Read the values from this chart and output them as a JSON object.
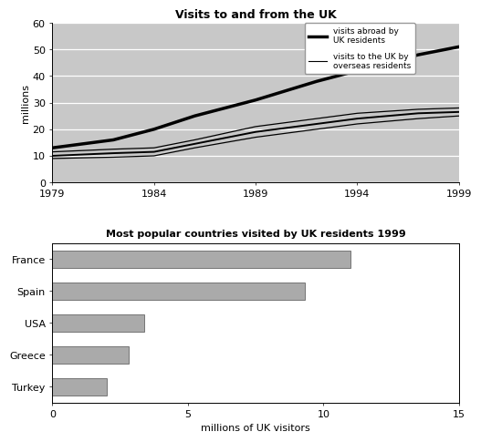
{
  "line_title": "Visits to and from the UK",
  "line_years": [
    1979,
    1982,
    1984,
    1986,
    1989,
    1992,
    1994,
    1997,
    1999
  ],
  "visits_abroad": [
    13,
    16,
    20,
    25,
    31,
    38,
    42,
    48,
    51
  ],
  "visits_to_uk_upper": [
    11.5,
    12.5,
    13,
    16,
    21,
    24,
    26,
    27.5,
    28
  ],
  "visits_to_uk_mid": [
    10,
    11,
    11.5,
    14.5,
    19,
    22,
    24,
    26,
    26.5
  ],
  "visits_to_uk_lower": [
    9,
    9.5,
    10,
    13,
    17,
    20,
    22,
    24,
    25
  ],
  "line_ylim": [
    0,
    60
  ],
  "line_yticks": [
    0,
    10,
    20,
    30,
    40,
    50,
    60
  ],
  "line_xticks": [
    1979,
    1984,
    1989,
    1994,
    1999
  ],
  "line_ylabel": "millions",
  "legend_abroad": "visits abroad by\nUK residents",
  "legend_touk": "visits to the UK by\noverseas residents",
  "bar_title": "Most popular countries visited by UK residents 1999",
  "bar_countries": [
    "Turkey",
    "Greece",
    "USA",
    "Spain",
    "France"
  ],
  "bar_values": [
    2.0,
    2.8,
    3.4,
    9.3,
    11.0
  ],
  "bar_xlim": [
    0,
    15
  ],
  "bar_xticks": [
    0,
    5,
    10,
    15
  ],
  "bar_xlabel": "millions of UK visitors",
  "bar_color": "#aaaaaa",
  "bg_color": "#c8c8c8",
  "line_color_abroad": "#000000",
  "line_color_touk": "#000000",
  "fig_bg": "#ffffff"
}
